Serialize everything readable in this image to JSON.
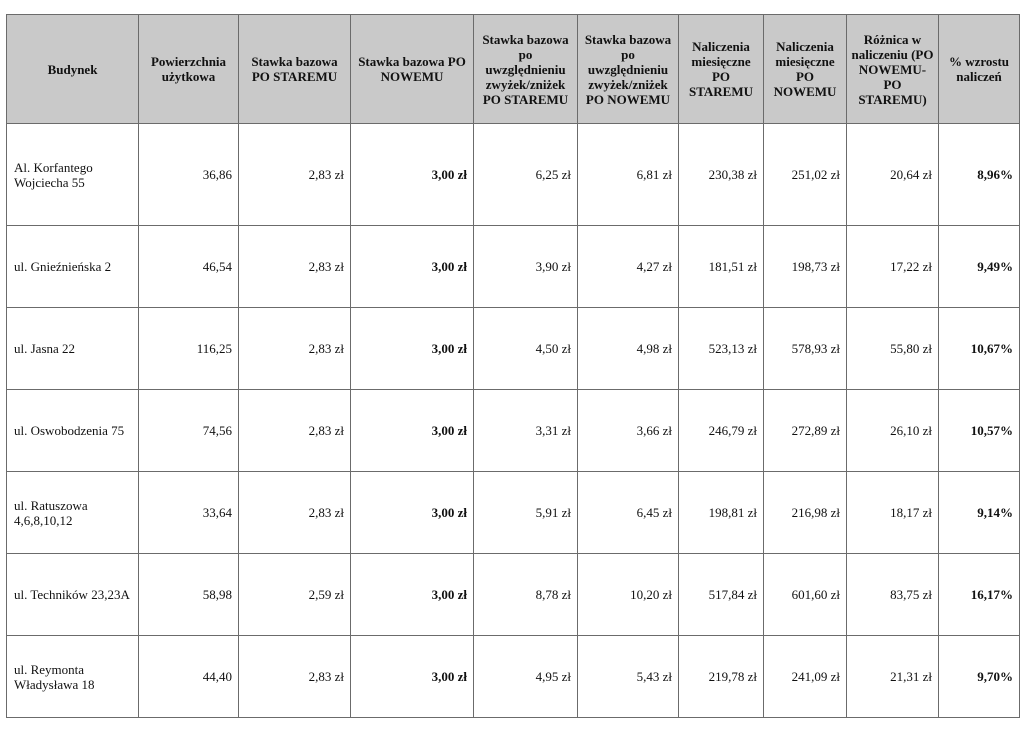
{
  "table": {
    "headers": [
      "Budynek",
      "Powierzchnia użytkowa",
      "Stawka bazowa PO STAREMU",
      "Stawka bazowa PO NOWEMU",
      "Stawka bazowa po uwzględnieniu zwyżek/zniżek PO STAREMU",
      "Stawka bazowa po uwzględnieniu zwyżek/zniżek PO NOWEMU",
      "Naliczenia miesięczne PO STAREMU",
      "Naliczenia miesięczne PO NOWEMU",
      "Różnica w naliczeniu (PO NOWEMU-PO STAREMU)",
      "% wzrostu naliczeń"
    ],
    "rows": [
      [
        "Al. Korfantego Wojciecha 55",
        "36,86",
        "2,83 zł",
        "3,00 zł",
        "6,25 zł",
        "6,81 zł",
        "230,38 zł",
        "251,02 zł",
        "20,64 zł",
        "8,96%"
      ],
      [
        "ul. Gnieźnieńska 2",
        "46,54",
        "2,83 zł",
        "3,00 zł",
        "3,90 zł",
        "4,27 zł",
        "181,51 zł",
        "198,73 zł",
        "17,22 zł",
        "9,49%"
      ],
      [
        "ul. Jasna 22",
        "116,25",
        "2,83 zł",
        "3,00 zł",
        "4,50 zł",
        "4,98 zł",
        "523,13 zł",
        "578,93 zł",
        "55,80 zł",
        "10,67%"
      ],
      [
        "ul. Oswobodzenia 75",
        "74,56",
        "2,83 zł",
        "3,00 zł",
        "3,31 zł",
        "3,66 zł",
        "246,79 zł",
        "272,89 zł",
        "26,10 zł",
        "10,57%"
      ],
      [
        "ul. Ratuszowa 4,6,8,10,12",
        "33,64",
        "2,83 zł",
        "3,00 zł",
        "5,91 zł",
        "6,45 zł",
        "198,81 zł",
        "216,98 zł",
        "18,17 zł",
        "9,14%"
      ],
      [
        "ul. Techników 23,23A",
        "58,98",
        "2,59 zł",
        "3,00 zł",
        "8,78 zł",
        "10,20 zł",
        "517,84 zł",
        "601,60 zł",
        "83,75 zł",
        "16,17%"
      ],
      [
        "ul. Reymonta Władysława 18",
        "44,40",
        "2,83 zł",
        "3,00 zł",
        "4,95 zł",
        "5,43 zł",
        "219,78 zł",
        "241,09 zł",
        "21,31 zł",
        "9,70%"
      ]
    ]
  },
  "colors": {
    "header_bg": "#c9c9c9",
    "border": "#6b6b6b"
  }
}
